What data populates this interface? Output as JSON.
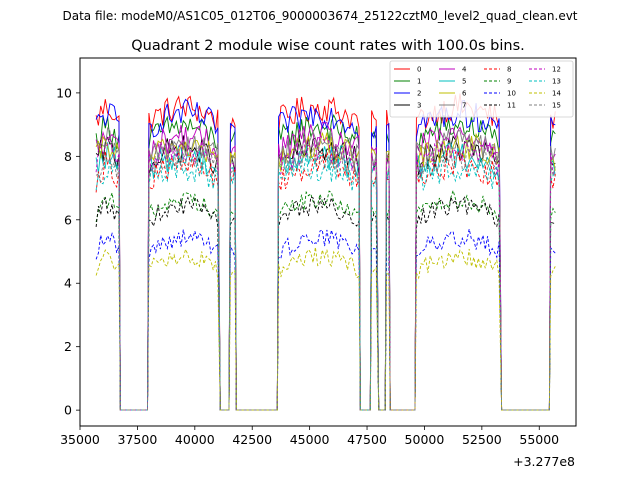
{
  "chart_data": {
    "type": "line",
    "suptitle": "Data file: modeM0/AS1C05_012T06_9000003674_25122cztM0_level2_quad_clean.evt",
    "title": "Quadrant 2 module wise count rates with 100.0s bins.",
    "xlabel": "",
    "ylabel": "",
    "x_offset_label": "+3.277e8",
    "xlim": [
      35000,
      56600
    ],
    "ylim": [
      -0.5,
      11.1
    ],
    "x_ticks": [
      35000,
      37500,
      40000,
      42500,
      45000,
      47500,
      50000,
      52500,
      55000
    ],
    "x_tick_labels": [
      "35000",
      "37500",
      "40000",
      "42500",
      "45000",
      "47500",
      "50000",
      "52500",
      "55000"
    ],
    "y_ticks": [
      0,
      2,
      4,
      6,
      8,
      10
    ],
    "y_tick_labels": [
      "0",
      "2",
      "4",
      "6",
      "8",
      "10"
    ],
    "bin_s": 100,
    "gaps": [
      [
        36800,
        37900
      ],
      [
        41150,
        41450
      ],
      [
        41850,
        43550
      ],
      [
        47250,
        47600
      ],
      [
        48050,
        48300
      ],
      [
        48500,
        49550
      ],
      [
        53400,
        55400
      ]
    ],
    "orbit_segments": [
      [
        35700,
        36700
      ],
      [
        38000,
        41050
      ],
      [
        41550,
        41750
      ],
      [
        43650,
        47150
      ],
      [
        47700,
        47950
      ],
      [
        48350,
        48450
      ],
      [
        49650,
        53300
      ],
      [
        55500,
        55700
      ]
    ],
    "series": [
      {
        "name": "0",
        "color": "#ff0000",
        "dash": "solid",
        "level": 9.1
      },
      {
        "name": "1",
        "color": "#008000",
        "dash": "solid",
        "level": 8.5
      },
      {
        "name": "2",
        "color": "#0000ff",
        "dash": "solid",
        "level": 8.9
      },
      {
        "name": "3",
        "color": "#000000",
        "dash": "solid",
        "level": 7.8
      },
      {
        "name": "4",
        "color": "#bf00bf",
        "dash": "solid",
        "level": 8.2
      },
      {
        "name": "5",
        "color": "#00bfbf",
        "dash": "solid",
        "level": 7.6
      },
      {
        "name": "6",
        "color": "#bfbf00",
        "dash": "solid",
        "level": 7.9
      },
      {
        "name": "7",
        "color": "#808080",
        "dash": "solid",
        "level": 8.0
      },
      {
        "name": "8",
        "color": "#ff0000",
        "dash": "dashed",
        "level": 7.3
      },
      {
        "name": "9",
        "color": "#008000",
        "dash": "dashed",
        "level": 6.2
      },
      {
        "name": "10",
        "color": "#0000ff",
        "dash": "dashed",
        "level": 5.0
      },
      {
        "name": "11",
        "color": "#000000",
        "dash": "dashed",
        "level": 6.0
      },
      {
        "name": "12",
        "color": "#bf00bf",
        "dash": "dashed",
        "level": 7.8
      },
      {
        "name": "13",
        "color": "#00bfbf",
        "dash": "dashed",
        "level": 7.2
      },
      {
        "name": "14",
        "color": "#bfbf00",
        "dash": "dashed",
        "level": 4.4
      },
      {
        "name": "15",
        "color": "#808080",
        "dash": "dashed",
        "level": 7.6
      }
    ],
    "legend_position": "top-right"
  }
}
